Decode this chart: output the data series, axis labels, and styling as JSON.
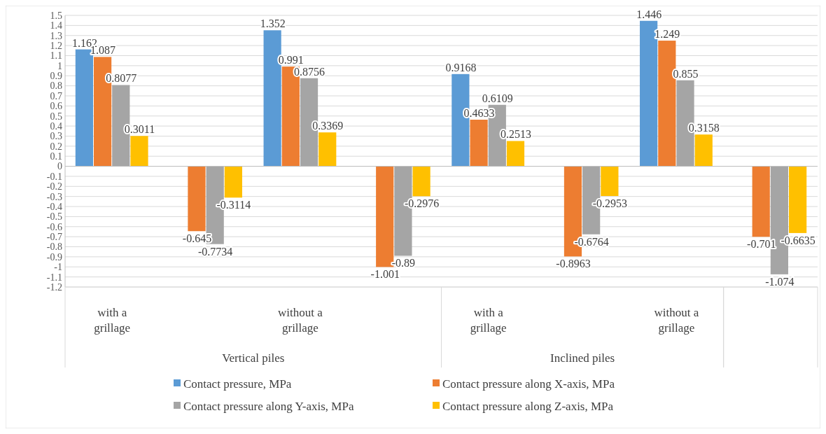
{
  "chart_data": {
    "type": "bar",
    "categories": [
      "with a grillage",
      null,
      "without a grillage",
      null,
      "with a grillage",
      null,
      "without a grillage",
      null
    ],
    "series": [
      {
        "name": "Contact pressure, MPa",
        "color": "#5b9bd5",
        "values": [
          1.162,
          null,
          1.352,
          null,
          0.9168,
          null,
          1.446,
          null
        ]
      },
      {
        "name": "Contact pressure along X-axis, MPa",
        "color": "#ed7d31",
        "values": [
          1.087,
          -0.645,
          0.991,
          -1.001,
          0.4633,
          -0.8963,
          1.249,
          -0.701
        ]
      },
      {
        "name": "Contact pressure along Y-axis, MPa",
        "color": "#a5a5a5",
        "values": [
          0.8077,
          -0.7734,
          0.8756,
          -0.89,
          0.6109,
          -0.6764,
          0.855,
          -1.074
        ]
      },
      {
        "name": "Contact pressure along Z-axis, MPa",
        "color": "#ffc000",
        "values": [
          0.3011,
          -0.3114,
          0.3369,
          -0.2976,
          0.2513,
          -0.2953,
          0.3158,
          -0.6635
        ]
      }
    ],
    "annotations": [
      "Vertical piles",
      "Inclined piles"
    ],
    "ylim": [
      -1.2,
      1.5
    ],
    "yticks": [
      -1.2,
      -1.1,
      -1,
      -0.9,
      -0.8,
      -0.7,
      -0.6,
      -0.5,
      -0.4,
      -0.3,
      -0.2,
      -0.1,
      0,
      0.1,
      0.2,
      0.3,
      0.4,
      0.5,
      0.6,
      0.7,
      0.8,
      0.9,
      1,
      1.1,
      1.2,
      1.3,
      1.4,
      1.5
    ],
    "grid": "y",
    "legend": "bottom",
    "data_labels": true
  }
}
